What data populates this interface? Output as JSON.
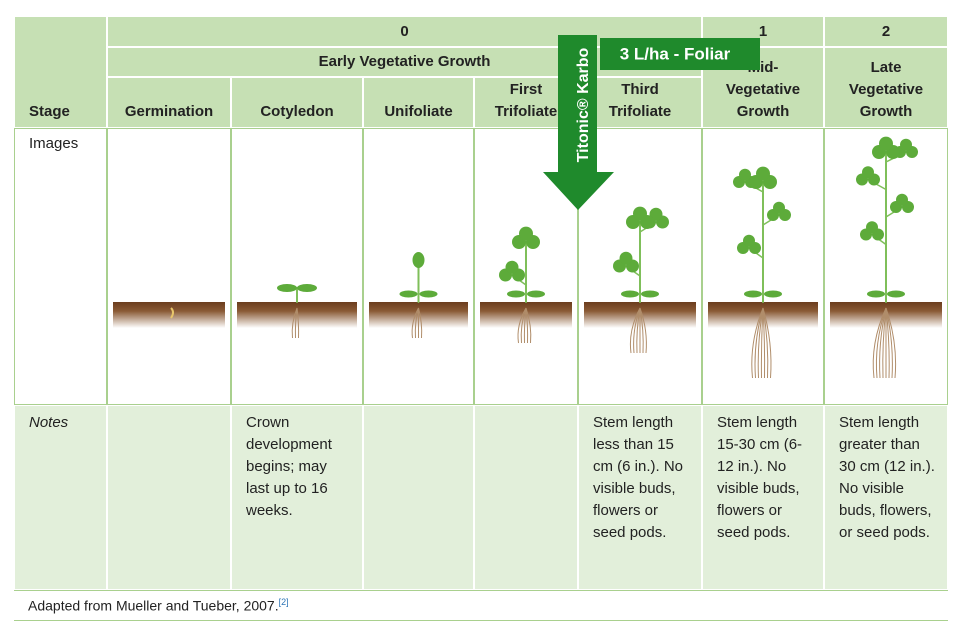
{
  "table": {
    "header": {
      "stage_label": "Stage",
      "stage_numbers": [
        "0",
        "1",
        "2"
      ],
      "group": "Early Vegetative Growth",
      "columns": [
        "Germination",
        "Cotyledon",
        "Unifoliate",
        "First\nTrifoliate",
        "Third\nTrifoliate",
        "Mid-\nVegetative\nGrowth",
        "Late\nVegetative\nGrowth"
      ]
    },
    "rows": [
      {
        "label": "Images"
      },
      {
        "label": "Notes",
        "cells": [
          null,
          "Crown development begins; may last up to 16 weeks.",
          null,
          null,
          "Stem length less than 15 cm (6 in.). No visible buds, flowers or seed pods.",
          "Stem length 15-30 cm (6-12 in.). No visible buds, flowers or seed pods.",
          "Stem length greater than 30 cm (12 in.). No visible buds, flowers, or seed pods."
        ]
      }
    ]
  },
  "overlay": {
    "product": "Titonic® Karbo",
    "rate": "3 L/ha - Foliar"
  },
  "footer": {
    "source": "Adapted from Mueller and Tueber, 2007.",
    "ref": "[2]"
  }
}
